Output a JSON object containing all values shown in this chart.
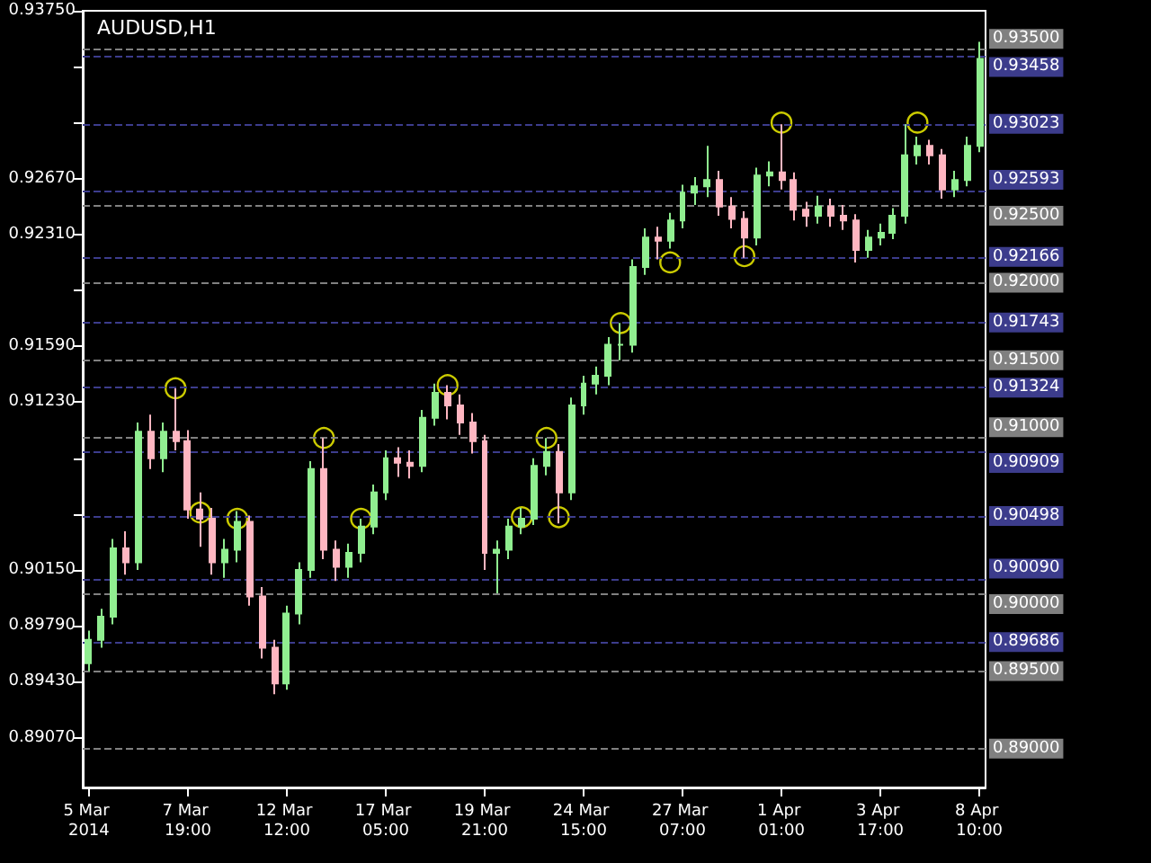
{
  "chart_data": {
    "type": "candlestick",
    "title": "AUDUSD,H1",
    "categories": [
      "5 Mar 2014",
      null,
      null,
      null,
      null,
      null,
      null,
      null,
      "7 Mar 19:00",
      null,
      null,
      null,
      null,
      null,
      null,
      null,
      "12 Mar 12:00",
      null,
      null,
      null,
      null,
      null,
      null,
      null,
      "17 Mar 05:00",
      null,
      null,
      null,
      null,
      null,
      null,
      null,
      "19 Mar 21:00",
      null,
      null,
      null,
      null,
      null,
      null,
      null,
      "24 Mar 15:00",
      null,
      null,
      null,
      null,
      null,
      null,
      null,
      "27 Mar 07:00",
      null,
      null,
      null,
      null,
      null,
      null,
      null,
      "1 Apr 01:00",
      null,
      null,
      null,
      null,
      null,
      null,
      null,
      "3 Apr 17:00",
      null,
      null,
      null,
      null,
      null,
      null,
      null,
      "8 Apr 10:00"
    ],
    "ohlc": [
      [
        0.8955,
        0.8976,
        0.895,
        0.897
      ],
      [
        0.897,
        0.899,
        0.8965,
        0.8985
      ],
      [
        0.8985,
        0.9035,
        0.898,
        0.9029
      ],
      [
        0.9029,
        0.904,
        0.9012,
        0.902
      ],
      [
        0.902,
        0.911,
        0.9015,
        0.9104
      ],
      [
        0.9104,
        0.9115,
        0.908,
        0.9087
      ],
      [
        0.9087,
        0.911,
        0.9078,
        0.9104
      ],
      [
        0.9104,
        0.9132,
        0.9092,
        0.9098
      ],
      [
        0.9098,
        0.9105,
        0.9048,
        0.9054
      ],
      [
        0.9054,
        0.9065,
        0.903,
        0.9048
      ],
      [
        0.9048,
        0.9055,
        0.9012,
        0.902
      ],
      [
        0.902,
        0.9035,
        0.901,
        0.9028
      ],
      [
        0.9028,
        0.9053,
        0.902,
        0.9046
      ],
      [
        0.9046,
        0.905,
        0.8992,
        0.8998
      ],
      [
        0.8998,
        0.9004,
        0.8958,
        0.8965
      ],
      [
        0.8965,
        0.897,
        0.8935,
        0.8942
      ],
      [
        0.8942,
        0.8992,
        0.8938,
        0.8987
      ],
      [
        0.8987,
        0.902,
        0.898,
        0.9015
      ],
      [
        0.9015,
        0.9085,
        0.901,
        0.908
      ],
      [
        0.908,
        0.91,
        0.9022,
        0.9028
      ],
      [
        0.9028,
        0.9034,
        0.9008,
        0.9017
      ],
      [
        0.9017,
        0.9032,
        0.901,
        0.9026
      ],
      [
        0.9026,
        0.9048,
        0.902,
        0.9043
      ],
      [
        0.9043,
        0.907,
        0.9038,
        0.9065
      ],
      [
        0.9065,
        0.9092,
        0.906,
        0.9087
      ],
      [
        0.9087,
        0.9094,
        0.9075,
        0.9084
      ],
      [
        0.9084,
        0.9092,
        0.9074,
        0.9082
      ],
      [
        0.9082,
        0.9118,
        0.9078,
        0.9113
      ],
      [
        0.9113,
        0.9135,
        0.9108,
        0.9129
      ],
      [
        0.9129,
        0.9134,
        0.9112,
        0.9121
      ],
      [
        0.9121,
        0.9128,
        0.9102,
        0.911
      ],
      [
        0.911,
        0.9116,
        0.909,
        0.9098
      ],
      [
        0.9098,
        0.9102,
        0.9015,
        0.9026
      ],
      [
        0.9026,
        0.9034,
        0.9,
        0.9028
      ],
      [
        0.9028,
        0.9048,
        0.9022,
        0.9043
      ],
      [
        0.9043,
        0.9055,
        0.9038,
        0.9048
      ],
      [
        0.9048,
        0.9087,
        0.9044,
        0.9082
      ],
      [
        0.9082,
        0.91,
        0.9076,
        0.9091
      ],
      [
        0.9091,
        0.9096,
        0.9045,
        0.9065
      ],
      [
        0.9065,
        0.9126,
        0.906,
        0.9121
      ],
      [
        0.9121,
        0.914,
        0.9115,
        0.9135
      ],
      [
        0.9135,
        0.9146,
        0.9128,
        0.914
      ],
      [
        0.914,
        0.9165,
        0.9134,
        0.916
      ],
      [
        0.916,
        0.9174,
        0.915,
        0.916
      ],
      [
        0.916,
        0.9215,
        0.9155,
        0.921
      ],
      [
        0.921,
        0.9235,
        0.9205,
        0.9229
      ],
      [
        0.9229,
        0.9236,
        0.9215,
        0.9227
      ],
      [
        0.9227,
        0.9245,
        0.9222,
        0.924
      ],
      [
        0.924,
        0.9263,
        0.9235,
        0.9258
      ],
      [
        0.9258,
        0.9268,
        0.925,
        0.9262
      ],
      [
        0.9262,
        0.9288,
        0.9255,
        0.9266
      ],
      [
        0.9266,
        0.9272,
        0.9243,
        0.9249
      ],
      [
        0.9249,
        0.9255,
        0.9235,
        0.9241
      ],
      [
        0.9241,
        0.9246,
        0.9216,
        0.9229
      ],
      [
        0.9229,
        0.9274,
        0.9224,
        0.9269
      ],
      [
        0.9269,
        0.9278,
        0.9262,
        0.9271
      ],
      [
        0.9271,
        0.9302,
        0.926,
        0.9266
      ],
      [
        0.9266,
        0.9271,
        0.924,
        0.9247
      ],
      [
        0.9247,
        0.9252,
        0.9236,
        0.9243
      ],
      [
        0.9243,
        0.9256,
        0.9238,
        0.9249
      ],
      [
        0.9249,
        0.9254,
        0.9236,
        0.9243
      ],
      [
        0.9243,
        0.925,
        0.9234,
        0.924
      ],
      [
        0.924,
        0.9244,
        0.9213,
        0.9221
      ],
      [
        0.9221,
        0.9234,
        0.9216,
        0.9229
      ],
      [
        0.9229,
        0.9238,
        0.9224,
        0.9232
      ],
      [
        0.9232,
        0.9248,
        0.9228,
        0.9243
      ],
      [
        0.9243,
        0.9302,
        0.9238,
        0.9282
      ],
      [
        0.9282,
        0.9294,
        0.9276,
        0.9288
      ],
      [
        0.9288,
        0.9292,
        0.9276,
        0.9282
      ],
      [
        0.9282,
        0.9286,
        0.9254,
        0.926
      ],
      [
        0.926,
        0.9272,
        0.9255,
        0.9266
      ],
      [
        0.9266,
        0.9294,
        0.9262,
        0.9288
      ],
      [
        0.9288,
        0.9355,
        0.9284,
        0.9344
      ]
    ],
    "colors": [
      "#90ee90",
      "#90ee90",
      "#90ee90",
      "#ffb6c1",
      "#90ee90",
      "#ffb6c1",
      "#90ee90",
      "#ffb6c1",
      "#ffb6c1",
      "#ffb6c1",
      "#ffb6c1",
      "#90ee90",
      "#90ee90",
      "#ffb6c1",
      "#ffb6c1",
      "#ffb6c1",
      "#90ee90",
      "#90ee90",
      "#90ee90",
      "#ffb6c1",
      "#ffb6c1",
      "#90ee90",
      "#90ee90",
      "#90ee90",
      "#90ee90",
      "#ffb6c1",
      "#ffb6c1",
      "#90ee90",
      "#90ee90",
      "#ffb6c1",
      "#ffb6c1",
      "#ffb6c1",
      "#ffb6c1",
      "#90ee90",
      "#90ee90",
      "#90ee90",
      "#90ee90",
      "#90ee90",
      "#ffb6c1",
      "#90ee90",
      "#90ee90",
      "#90ee90",
      "#90ee90",
      "#90ee90",
      "#90ee90",
      "#90ee90",
      "#ffb6c1",
      "#90ee90",
      "#90ee90",
      "#90ee90",
      "#90ee90",
      "#ffb6c1",
      "#ffb6c1",
      "#ffb6c1",
      "#90ee90",
      "#90ee90",
      "#ffb6c1",
      "#ffb6c1",
      "#ffb6c1",
      "#90ee90",
      "#ffb6c1",
      "#ffb6c1",
      "#ffb6c1",
      "#90ee90",
      "#90ee90",
      "#90ee90",
      "#90ee90",
      "#90ee90",
      "#ffb6c1",
      "#ffb6c1",
      "#90ee90",
      "#90ee90",
      "#90ee90"
    ],
    "series": [
      {
        "type": "scatter",
        "color": "#ffff00",
        "marker": "circle",
        "values": [
          null,
          null,
          null,
          null,
          null,
          null,
          null,
          0.9132,
          null,
          0.9052,
          null,
          null,
          0.9048,
          null,
          null,
          null,
          null,
          null,
          null,
          0.91,
          null,
          null,
          0.9048,
          null,
          null,
          null,
          null,
          null,
          null,
          0.9134,
          null,
          null,
          null,
          null,
          null,
          0.9049,
          null,
          0.91,
          0.9049,
          null,
          null,
          null,
          null,
          0.9174,
          null,
          null,
          null,
          0.9213,
          null,
          null,
          null,
          null,
          null,
          0.9217,
          null,
          null,
          0.9303,
          null,
          null,
          null,
          null,
          null,
          null,
          null,
          null,
          null,
          null,
          0.9303,
          null,
          null,
          null,
          null,
          null
        ]
      }
    ],
    "ylim": [
      0.8875,
      0.9375
    ],
    "yticks": [
      {
        "value": 0.8907,
        "label": "0.89070"
      },
      {
        "value": 0.8943,
        "label": "0.89430"
      },
      {
        "value": 0.8979,
        "label": "0.89790"
      },
      {
        "value": 0.9015,
        "label": "0.90150"
      },
      {
        "value": 0.9051,
        "label": null
      },
      {
        "value": 0.9087,
        "label": null
      },
      {
        "value": 0.9123,
        "label": "0.91230"
      },
      {
        "value": 0.9159,
        "label": "0.91590"
      },
      {
        "value": 0.9195,
        "label": null
      },
      {
        "value": 0.9231,
        "label": "0.92310"
      },
      {
        "value": 0.9267,
        "label": "0.92670"
      },
      {
        "value": 0.9303,
        "label": null
      },
      {
        "value": 0.9339,
        "label": null
      },
      {
        "value": 0.9375,
        "label": "0.93750"
      }
    ],
    "grid": false,
    "ref_lines": [
      {
        "axis": "y",
        "value": 0.935,
        "label": "0.93500",
        "color": "#808080",
        "line_style": "dashed"
      },
      {
        "axis": "y",
        "value": 0.93458,
        "label": "0.93458",
        "color": "#3c3c8c",
        "line_style": "dashed"
      },
      {
        "axis": "y",
        "value": 0.93023,
        "label": "0.93023",
        "color": "#3c3c8c",
        "line_style": "dashed"
      },
      {
        "axis": "y",
        "value": 0.92593,
        "label": "0.92593",
        "color": "#3c3c8c",
        "line_style": "dashed"
      },
      {
        "axis": "y",
        "value": 0.925,
        "label": "0.92500",
        "color": "#808080",
        "line_style": "dashed"
      },
      {
        "axis": "y",
        "value": 0.92166,
        "label": "0.92166",
        "color": "#3c3c8c",
        "line_style": "dashed"
      },
      {
        "axis": "y",
        "value": 0.92,
        "label": "0.92000",
        "color": "#808080",
        "line_style": "dashed"
      },
      {
        "axis": "y",
        "value": 0.91743,
        "label": "0.91743",
        "color": "#3c3c8c",
        "line_style": "dashed"
      },
      {
        "axis": "y",
        "value": 0.915,
        "label": "0.91500",
        "color": "#808080",
        "line_style": "dashed"
      },
      {
        "axis": "y",
        "value": 0.91324,
        "label": "0.91324",
        "color": "#3c3c8c",
        "line_style": "dashed"
      },
      {
        "axis": "y",
        "value": 0.91,
        "label": "0.91000",
        "color": "#808080",
        "line_style": "dashed"
      },
      {
        "axis": "y",
        "value": 0.90909,
        "label": "0.90909",
        "color": "#3c3c8c",
        "line_style": "dashed"
      },
      {
        "axis": "y",
        "value": 0.90498,
        "label": "0.90498",
        "color": "#3c3c8c",
        "line_style": "dashed"
      },
      {
        "axis": "y",
        "value": 0.9009,
        "label": "0.90090",
        "color": "#3c3c8c",
        "line_style": "dashed"
      },
      {
        "axis": "y",
        "value": 0.9,
        "label": "0.90000",
        "color": "#808080",
        "line_style": "dashed"
      },
      {
        "axis": "y",
        "value": 0.89686,
        "label": "0.89686",
        "color": "#3c3c8c",
        "line_style": "dashed"
      },
      {
        "axis": "y",
        "value": 0.895,
        "label": "0.89500",
        "color": "#808080",
        "line_style": "dashed"
      },
      {
        "axis": "y",
        "value": 0.89,
        "label": "0.89000",
        "color": "#808080",
        "line_style": "dashed"
      }
    ]
  }
}
